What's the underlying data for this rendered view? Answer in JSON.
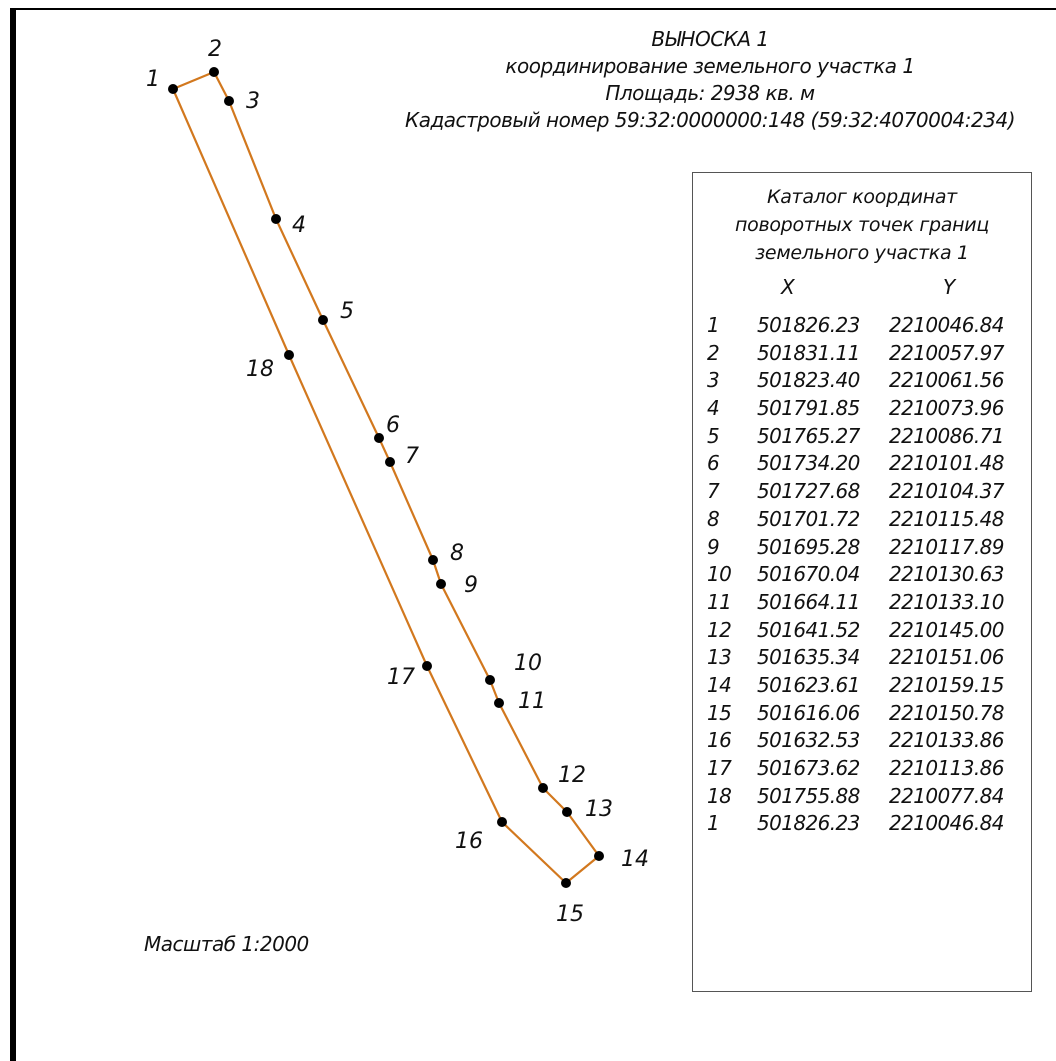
{
  "header": {
    "line1": "ВЫНОСКА 1",
    "line2": "координирование земельного участка 1",
    "line3": "Площадь: 2938 кв. м",
    "line4": "Кадастровый номер 59:32:0000000:148 (59:32:4070004:234)"
  },
  "boundary": {
    "line_color": "#d2781e",
    "point_color": "#000000",
    "points": [
      {
        "label": "1"
      },
      {
        "label": "2"
      },
      {
        "label": "3"
      },
      {
        "label": "4"
      },
      {
        "label": "5"
      },
      {
        "label": "6"
      },
      {
        "label": "7"
      },
      {
        "label": "8"
      },
      {
        "label": "9"
      },
      {
        "label": "10"
      },
      {
        "label": "11"
      },
      {
        "label": "12"
      },
      {
        "label": "13"
      },
      {
        "label": "14"
      },
      {
        "label": "15"
      },
      {
        "label": "16"
      },
      {
        "label": "17"
      },
      {
        "label": "18"
      }
    ]
  },
  "catalog": {
    "title_line1": "Каталог координат",
    "title_line2": "поворотных точек границ",
    "title_line3": "земельного участка 1",
    "col_x": "X",
    "col_y": "Y",
    "rows": [
      {
        "n": "1",
        "x": "501826.23",
        "y": "2210046.84"
      },
      {
        "n": "2",
        "x": "501831.11",
        "y": "2210057.97"
      },
      {
        "n": "3",
        "x": "501823.40",
        "y": "2210061.56"
      },
      {
        "n": "4",
        "x": "501791.85",
        "y": "2210073.96"
      },
      {
        "n": "5",
        "x": "501765.27",
        "y": "2210086.71"
      },
      {
        "n": "6",
        "x": "501734.20",
        "y": "2210101.48"
      },
      {
        "n": "7",
        "x": "501727.68",
        "y": "2210104.37"
      },
      {
        "n": "8",
        "x": "501701.72",
        "y": "2210115.48"
      },
      {
        "n": "9",
        "x": "501695.28",
        "y": "2210117.89"
      },
      {
        "n": "10",
        "x": "501670.04",
        "y": "2210130.63"
      },
      {
        "n": "11",
        "x": "501664.11",
        "y": "2210133.10"
      },
      {
        "n": "12",
        "x": "501641.52",
        "y": "2210145.00"
      },
      {
        "n": "13",
        "x": "501635.34",
        "y": "2210151.06"
      },
      {
        "n": "14",
        "x": "501623.61",
        "y": "2210159.15"
      },
      {
        "n": "15",
        "x": "501616.06",
        "y": "2210150.78"
      },
      {
        "n": "16",
        "x": "501632.53",
        "y": "2210133.86"
      },
      {
        "n": "17",
        "x": "501673.62",
        "y": "2210113.86"
      },
      {
        "n": "18",
        "x": "501755.88",
        "y": "2210077.84"
      },
      {
        "n": "1",
        "x": "501826.23",
        "y": "2210046.84"
      }
    ]
  },
  "scale": "Масштаб 1:2000"
}
